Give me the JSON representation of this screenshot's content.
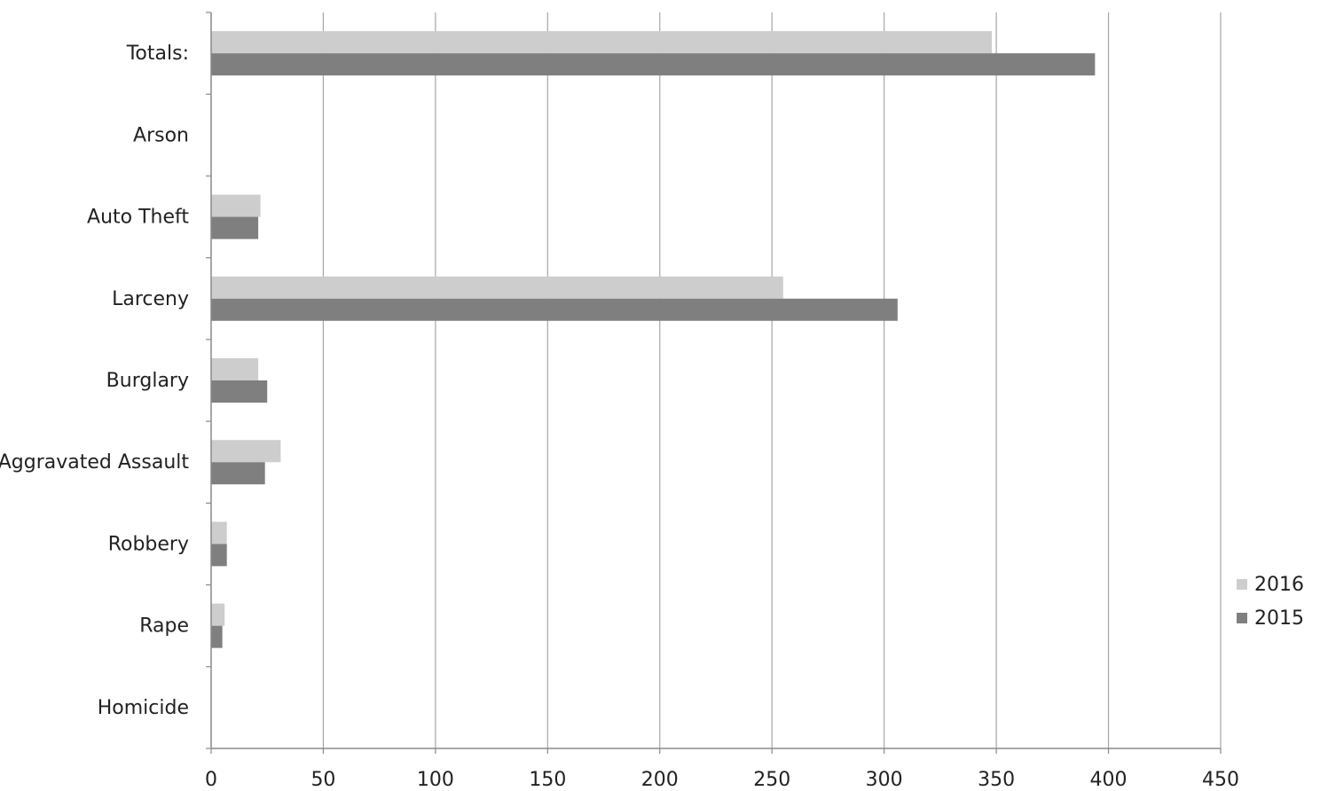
{
  "chart_data": {
    "type": "bar",
    "orientation": "horizontal",
    "categories": [
      "Totals:",
      "Arson",
      "Auto Theft",
      "Larceny",
      "Burglary",
      "Aggravated Assault",
      "Robbery",
      "Rape",
      "Homicide"
    ],
    "series": [
      {
        "name": "2016",
        "color": "#cdcdcd",
        "values": [
          348,
          0,
          22,
          255,
          21,
          31,
          7,
          6,
          0
        ]
      },
      {
        "name": "2015",
        "color": "#7f7f7f",
        "values": [
          394,
          0,
          21,
          306,
          25,
          24,
          7,
          5,
          0
        ]
      }
    ],
    "xlim": [
      0,
      450
    ],
    "xticks": [
      "0",
      "50",
      "100",
      "150",
      "200",
      "250",
      "300",
      "350",
      "400",
      "450"
    ],
    "grid": true,
    "legend_position": "right"
  }
}
